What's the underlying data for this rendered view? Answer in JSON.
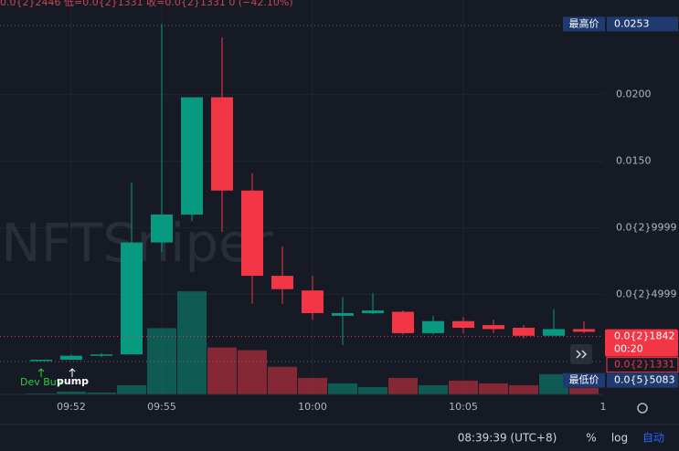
{
  "header": "0.0{2}2446 低=0.0{2}1331 收=0.0{2}1331 0 (−42.10%)",
  "watermark": "NFTSniper",
  "markers": [
    "Dev Buy",
    "pump"
  ],
  "toolbar": {
    "clock": "08:39:39 (UTC+8)",
    "percent": "%",
    "log": "log",
    "auto": "自动"
  },
  "x_axis_partial": "1",
  "chart_data": {
    "type": "candlestick",
    "categories": [
      null,
      "09:52",
      null,
      null,
      "09:55",
      null,
      null,
      null,
      null,
      "10:00",
      null,
      null,
      null,
      null,
      "10:05",
      null,
      null,
      null,
      null
    ],
    "open": [
      0.0,
      0.0001,
      0.0004,
      0.0005,
      0.0089,
      0.011,
      0.0198,
      0.0128,
      0.0064,
      0.0053,
      0.0034,
      0.0036,
      0.0037,
      0.0021,
      0.003,
      0.0027,
      0.0025,
      0.0019,
      0.0024
    ],
    "high": [
      0.0001,
      0.0005,
      0.0006,
      0.0134,
      0.0253,
      0.0198,
      0.0243,
      0.0141,
      0.0086,
      0.0064,
      0.0048,
      0.0051,
      0.0038,
      0.0034,
      0.0033,
      0.0031,
      0.0027,
      0.0039,
      0.003
    ],
    "low": [
      0.0,
      0.0001,
      0.0003,
      0.0005,
      0.0082,
      0.0105,
      0.0097,
      0.0043,
      0.0043,
      0.0031,
      0.0012,
      0.0035,
      0.002,
      0.002,
      0.0021,
      0.0021,
      0.0017,
      0.0019,
      0.0021
    ],
    "close": [
      0.0001,
      0.0004,
      0.0005,
      0.0089,
      0.011,
      0.0198,
      0.0128,
      0.0064,
      0.0054,
      0.0036,
      0.0036,
      0.0038,
      0.0021,
      0.003,
      0.0025,
      0.0024,
      0.0019,
      0.0024,
      0.0022
    ],
    "volume": [
      56,
      170,
      113,
      565,
      4068,
      6328,
      2881,
      2712,
      1695,
      1017,
      678,
      452,
      1017,
      565,
      847,
      678,
      565,
      1243,
      395
    ],
    "vlim": [
      0,
      6500
    ],
    "up_color": "#089981",
    "down_color": "#f23645",
    "ylim": [
      -0.0025,
      0.0271
    ],
    "yticks": [
      {
        "value": 0.02,
        "label": "0.0200"
      },
      {
        "value": 0.015,
        "label": "0.0150"
      },
      {
        "value": 0.009999,
        "label": "0.0{2}9999"
      },
      {
        "value": 0.004999,
        "label": "0.0{2}4999"
      }
    ],
    "grid": true,
    "price_tags": [
      {
        "name": "最高价",
        "value": 0.0253,
        "color": "#1e3a6e"
      },
      {
        "value": 0.001842,
        "label": "0.0{2}1842",
        "countdown": "00:20",
        "color": "#f23645"
      },
      {
        "value": 0.001331,
        "label": "0.0{2}1331",
        "color": "#161a25"
      },
      {
        "name": "最低价",
        "value": 5.083e-06,
        "label": "0.0{5}5083",
        "color": "#1e3a6e"
      }
    ]
  }
}
